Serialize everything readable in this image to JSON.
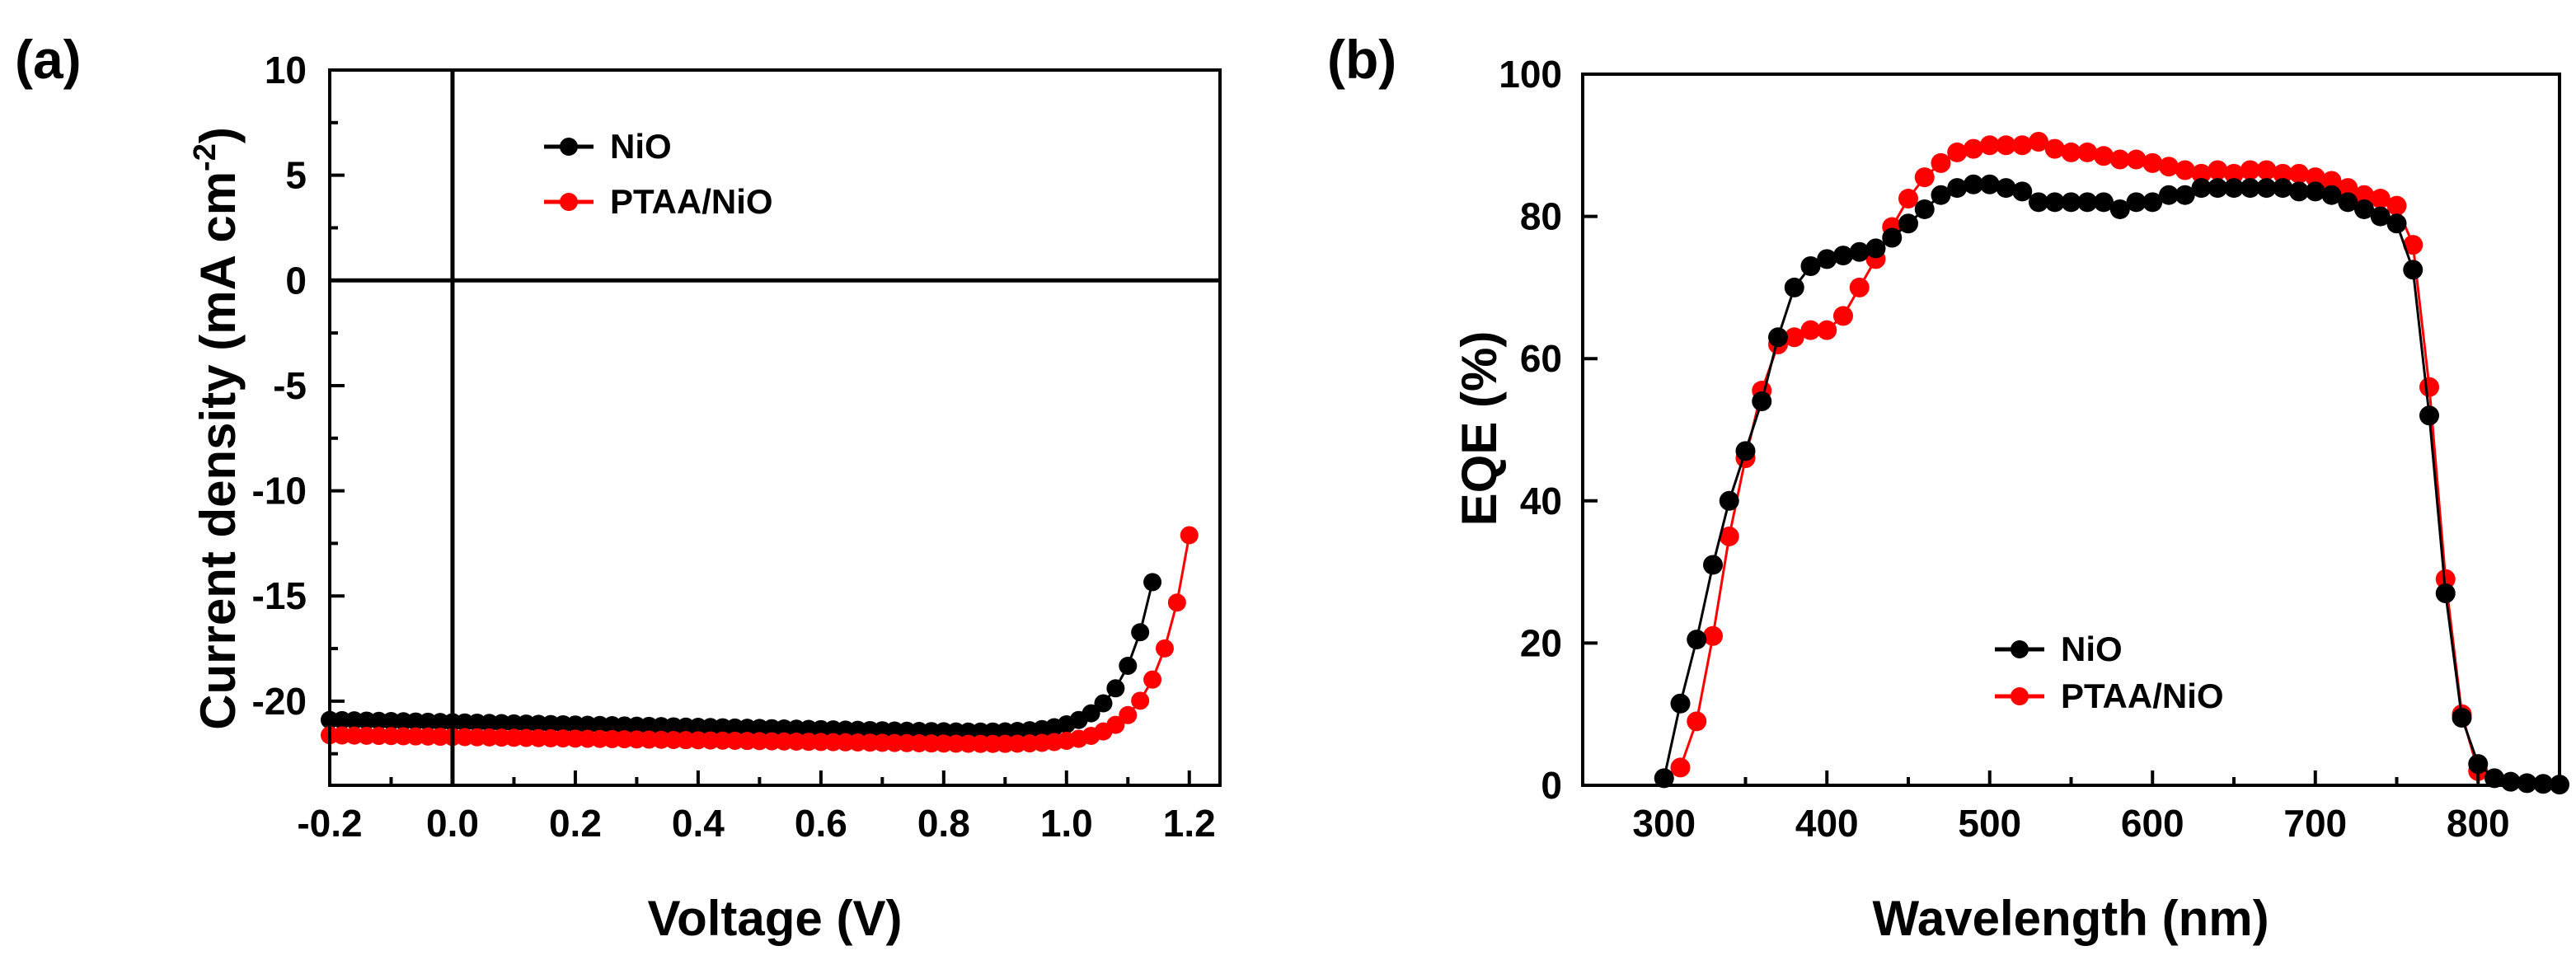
{
  "chart_data": [
    {
      "panel": "(a)",
      "type": "line",
      "xlabel": "Voltage (V)",
      "ylabel": "Current density (mA cm",
      "ylabel_sup": "-2",
      "ylabel_close": ")",
      "xlim": [
        -0.2,
        1.25
      ],
      "ylim": [
        -24,
        10
      ],
      "xticks": [
        -0.2,
        0.0,
        0.2,
        0.4,
        0.6,
        0.8,
        1.0,
        1.2
      ],
      "xtick_labels": [
        "-0.2",
        "0.0",
        "0.2",
        "0.4",
        "0.6",
        "0.8",
        "1.0",
        "1.2"
      ],
      "yticks": [
        10,
        5,
        0,
        -5,
        -10,
        -15,
        -20
      ],
      "ytick_labels": [
        "10",
        "5",
        "0",
        "-5",
        "-10",
        "-15",
        "-20"
      ],
      "reference_lines": {
        "x": 0,
        "y": 0
      },
      "legend": {
        "position": "top-left",
        "entries": [
          "NiO",
          "PTAA/NiO"
        ]
      },
      "series": [
        {
          "name": "NiO",
          "color": "#000000",
          "curve": {
            "jsc": -21.0,
            "slope": -0.55,
            "j0": 1e-09,
            "n_vt": 0.0502
          },
          "x_range": [
            -0.2,
            1.155
          ],
          "step": 0.02
        },
        {
          "name": "PTAA/NiO",
          "color": "#ff0000",
          "curve": {
            "jsc": -21.7,
            "slope": -0.4,
            "j0": 1e-09,
            "n_vt": 0.0521
          },
          "x_range": [
            -0.2,
            1.2
          ],
          "step": 0.02
        }
      ]
    },
    {
      "panel": "(b)",
      "type": "line",
      "xlabel": "Wavelength (nm)",
      "ylabel": "EQE (%)",
      "xlim": [
        250,
        850
      ],
      "ylim": [
        0,
        100
      ],
      "xticks": [
        300,
        400,
        500,
        600,
        700,
        800
      ],
      "xtick_labels": [
        "300",
        "400",
        "500",
        "600",
        "700",
        "800"
      ],
      "yticks": [
        0,
        20,
        40,
        60,
        80,
        100
      ],
      "ytick_labels": [
        "0",
        "20",
        "40",
        "60",
        "80",
        "100"
      ],
      "legend": {
        "position": "bottom-center",
        "entries": [
          "NiO",
          "PTAA/NiO"
        ]
      },
      "series": [
        {
          "name": "NiO",
          "color": "#000000",
          "x": [
            300,
            310,
            320,
            330,
            340,
            350,
            360,
            370,
            380,
            390,
            400,
            410,
            420,
            430,
            440,
            450,
            460,
            470,
            480,
            490,
            500,
            510,
            520,
            530,
            540,
            550,
            560,
            570,
            580,
            590,
            600,
            610,
            620,
            630,
            640,
            650,
            660,
            670,
            680,
            690,
            700,
            710,
            720,
            730,
            740,
            750,
            760,
            770,
            780,
            790,
            800,
            810,
            820,
            830,
            840,
            850
          ],
          "values": [
            1,
            11.5,
            20.5,
            31,
            40,
            47,
            54,
            63,
            70,
            73,
            74,
            74.5,
            75,
            75.5,
            77,
            79,
            81,
            83,
            84,
            84.5,
            84.5,
            84,
            83.5,
            82,
            82,
            82,
            82,
            82,
            81,
            82,
            82,
            83,
            83,
            84,
            84,
            84,
            84,
            84,
            84,
            83.5,
            83.5,
            83,
            82,
            81,
            80,
            79,
            72.5,
            52,
            27,
            9.5,
            3,
            1,
            0.5,
            0.3,
            0.2,
            0.1
          ]
        },
        {
          "name": "PTAA/NiO",
          "color": "#ff0000",
          "x": [
            310,
            320,
            330,
            340,
            350,
            360,
            370,
            380,
            390,
            400,
            410,
            420,
            430,
            440,
            450,
            460,
            470,
            480,
            490,
            500,
            510,
            520,
            530,
            540,
            550,
            560,
            570,
            580,
            590,
            600,
            610,
            620,
            630,
            640,
            650,
            660,
            670,
            680,
            690,
            700,
            710,
            720,
            730,
            740,
            750,
            760,
            770,
            780,
            790,
            800
          ],
          "values": [
            2.5,
            9,
            21,
            35,
            46,
            55.5,
            62,
            63,
            64,
            64,
            66,
            70,
            74,
            78.5,
            82.5,
            85.5,
            87.5,
            89,
            89.5,
            90,
            90,
            90,
            90.5,
            89.5,
            89,
            89,
            88.5,
            88,
            88,
            87.5,
            87,
            86.5,
            86,
            86.5,
            86,
            86.5,
            86.5,
            86,
            86,
            85.5,
            85,
            84,
            83,
            82.5,
            81.5,
            76,
            56,
            29,
            10,
            2
          ]
        }
      ]
    }
  ]
}
